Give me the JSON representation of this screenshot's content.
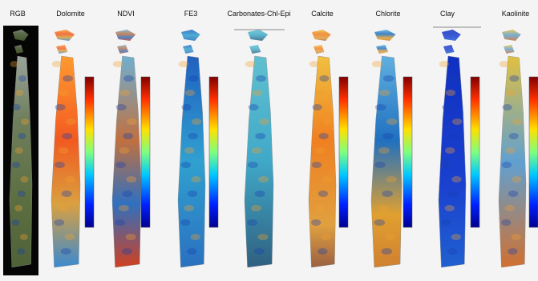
{
  "panels": [
    {
      "label": "RGB"
    },
    {
      "label": "Dolomite"
    },
    {
      "label": "NDVI"
    },
    {
      "label": "FE3"
    },
    {
      "label": "Carbonates-Chl-Epi"
    },
    {
      "label": "Calcite"
    },
    {
      "label": "Chlorite"
    },
    {
      "label": "Clay"
    },
    {
      "label": "Kaolinite"
    }
  ]
}
